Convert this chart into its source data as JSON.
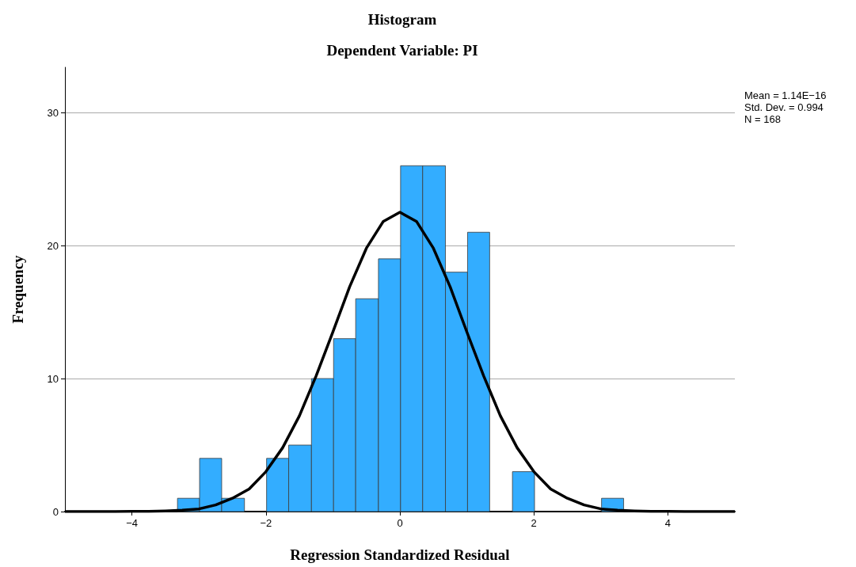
{
  "chart_data": {
    "type": "histogram",
    "title": "Histogram",
    "subtitle": "Dependent Variable: PI",
    "xlabel": "Regression Standardized Residual",
    "ylabel": "Frequency",
    "series": [
      {
        "color": "#33adff",
        "bins": [
          -3.32,
          -2.99,
          -2.66,
          -2.32,
          -1.99,
          -1.66,
          -1.32,
          -0.99,
          -0.66,
          -0.32,
          0.01,
          0.34,
          0.68,
          1.01,
          1.34,
          1.68,
          2.01,
          3.01,
          3.34
        ],
        "values": [
          1,
          4,
          1,
          0,
          4,
          5,
          10,
          13,
          16,
          19,
          26,
          26,
          18,
          21,
          0,
          3,
          0,
          1
        ]
      },
      {
        "type": "line",
        "color": "#000000",
        "x": [
          -5,
          -4.75,
          -4.5,
          -4.25,
          -4,
          -3.75,
          -3.5,
          -3.25,
          -3,
          -2.75,
          -2.5,
          -2.25,
          -2,
          -1.75,
          -1.5,
          -1.25,
          -1,
          -0.75,
          -0.5,
          -0.25,
          0,
          0.25,
          0.5,
          0.75,
          1,
          1.25,
          1.5,
          1.75,
          2,
          2.25,
          2.5,
          2.75,
          3,
          3.25,
          3.5,
          3.75,
          4,
          4.25,
          4.5,
          4.75,
          5
        ],
        "values": [
          0,
          0,
          0,
          0,
          0.01,
          0.02,
          0.05,
          0.1,
          0.2,
          0.5,
          1.0,
          1.7,
          3.0,
          4.8,
          7.2,
          10.2,
          13.5,
          16.9,
          19.8,
          21.8,
          22.5,
          21.8,
          19.8,
          16.9,
          13.5,
          10.2,
          7.2,
          4.8,
          3.0,
          1.7,
          1.0,
          0.5,
          0.2,
          0.1,
          0.05,
          0.02,
          0.01,
          0,
          0,
          0,
          0
        ]
      }
    ],
    "xlim": [
      -5,
      5
    ],
    "xticks": [
      {
        "value": -4,
        "label": "−4"
      },
      {
        "value": -2,
        "label": "−2"
      },
      0,
      2,
      4
    ],
    "ylim": [
      0,
      33.4
    ],
    "yticks": [
      0,
      10,
      20,
      30
    ],
    "grid": "y",
    "annotations": [
      "Mean = 1.14E−16",
      "Std. Dev. = 0.994",
      "N = 168"
    ]
  }
}
